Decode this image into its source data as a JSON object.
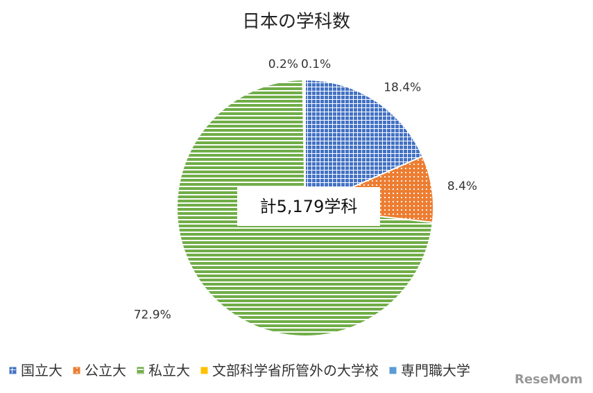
{
  "chart_data": {
    "type": "pie",
    "title": "日本の学科数",
    "categories": [
      "国立大",
      "公立大",
      "私立大",
      "文部科学省所管外の大学校",
      "専門職大学"
    ],
    "values": [
      18.4,
      8.4,
      72.9,
      0.2,
      0.1
    ],
    "value_labels": [
      "18.4%",
      "8.4%",
      "72.9%",
      "0.2%",
      "0.1%"
    ],
    "colors": [
      "#4472c4",
      "#ed7d31",
      "#70ad47",
      "#ffc000",
      "#5b9bd5"
    ],
    "annotation": "計5,179学科",
    "watermark": "ReseMom"
  }
}
